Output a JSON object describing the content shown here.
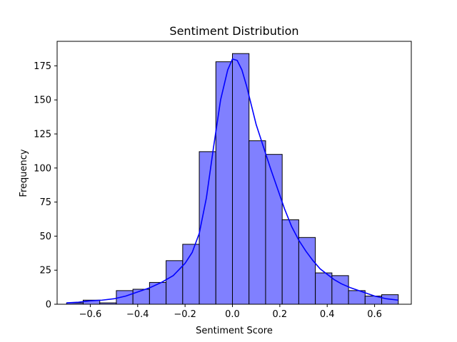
{
  "chart_data": {
    "type": "histogram",
    "title": "Sentiment Distribution",
    "xlabel": "Sentiment Score",
    "ylabel": "Frequency",
    "xlim": [
      -0.74,
      0.755
    ],
    "ylim": [
      0,
      193
    ],
    "x_ticks": [
      -0.6,
      -0.4,
      -0.2,
      0.0,
      0.2,
      0.4,
      0.6
    ],
    "x_tick_labels": [
      "−0.6",
      "−0.4",
      "−0.2",
      "0.0",
      "0.2",
      "0.4",
      "0.6"
    ],
    "y_ticks": [
      0,
      25,
      50,
      75,
      100,
      125,
      150,
      175
    ],
    "y_tick_labels": [
      "0",
      "25",
      "50",
      "75",
      "100",
      "125",
      "150",
      "175"
    ],
    "grid": false,
    "bins": [
      {
        "x0": -0.7,
        "x1": -0.63,
        "count": 1
      },
      {
        "x0": -0.63,
        "x1": -0.56,
        "count": 3
      },
      {
        "x0": -0.56,
        "x1": -0.49,
        "count": 1
      },
      {
        "x0": -0.49,
        "x1": -0.42,
        "count": 10
      },
      {
        "x0": -0.42,
        "x1": -0.35,
        "count": 11
      },
      {
        "x0": -0.35,
        "x1": -0.28,
        "count": 16
      },
      {
        "x0": -0.28,
        "x1": -0.21,
        "count": 32
      },
      {
        "x0": -0.21,
        "x1": -0.14,
        "count": 44
      },
      {
        "x0": -0.14,
        "x1": -0.07,
        "count": 112
      },
      {
        "x0": -0.07,
        "x1": 0.0,
        "count": 178
      },
      {
        "x0": 0.0,
        "x1": 0.07,
        "count": 184
      },
      {
        "x0": 0.07,
        "x1": 0.14,
        "count": 120
      },
      {
        "x0": 0.14,
        "x1": 0.21,
        "count": 110
      },
      {
        "x0": 0.21,
        "x1": 0.28,
        "count": 62
      },
      {
        "x0": 0.28,
        "x1": 0.35,
        "count": 49
      },
      {
        "x0": 0.35,
        "x1": 0.42,
        "count": 23
      },
      {
        "x0": 0.42,
        "x1": 0.49,
        "count": 21
      },
      {
        "x0": 0.49,
        "x1": 0.56,
        "count": 10
      },
      {
        "x0": 0.56,
        "x1": 0.63,
        "count": 6
      },
      {
        "x0": 0.63,
        "x1": 0.7,
        "count": 7
      }
    ],
    "kde": {
      "x": [
        -0.7,
        -0.65,
        -0.6,
        -0.55,
        -0.5,
        -0.45,
        -0.4,
        -0.35,
        -0.3,
        -0.25,
        -0.2,
        -0.17,
        -0.14,
        -0.11,
        -0.08,
        -0.05,
        -0.02,
        0.0,
        0.02,
        0.04,
        0.06,
        0.08,
        0.1,
        0.13,
        0.16,
        0.19,
        0.22,
        0.25,
        0.28,
        0.31,
        0.34,
        0.37,
        0.4,
        0.43,
        0.46,
        0.5,
        0.55,
        0.6,
        0.65,
        0.7
      ],
      "y": [
        1,
        1.5,
        2.5,
        3,
        4,
        6,
        9,
        12,
        16,
        21,
        30,
        38,
        52,
        78,
        115,
        150,
        172,
        180,
        179,
        172,
        160,
        146,
        132,
        116,
        100,
        85,
        70,
        57,
        47,
        39,
        32,
        26,
        22,
        18,
        15,
        12,
        9,
        6,
        4,
        3
      ]
    },
    "colors": {
      "bar_fill": "#8080ff",
      "bar_edge": "#000000",
      "kde_line": "#0000ff",
      "axes": "#000000"
    }
  }
}
